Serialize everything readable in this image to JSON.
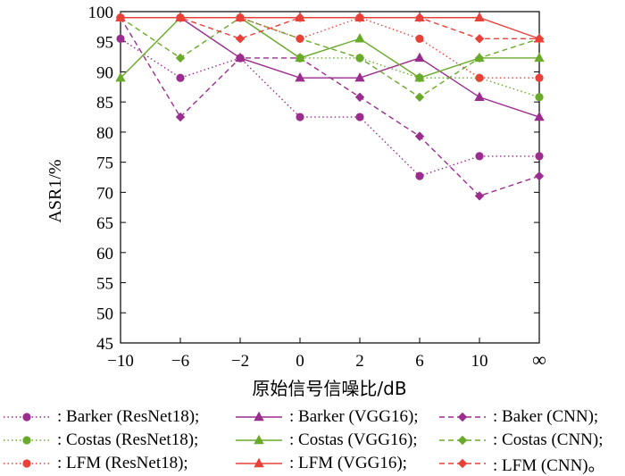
{
  "chart_data": {
    "type": "line",
    "xlabel": "原始信号信噪比/dB",
    "ylabel": "ASR1/%",
    "categories": [
      "−10",
      "−6",
      "−2",
      "0",
      "2",
      "6",
      "10",
      "∞"
    ],
    "ylim": [
      45,
      100
    ],
    "yticks": [
      45,
      50,
      55,
      60,
      65,
      70,
      75,
      80,
      85,
      90,
      95,
      100
    ],
    "grid": false,
    "legend_position": "bottom",
    "series": [
      {
        "name": ": Barker (ResNet18);",
        "color": "#9b2d8e",
        "marker": "circle",
        "dash": "dotted",
        "values": [
          95.5,
          89,
          92.3,
          82.5,
          82.5,
          72.7,
          76,
          76
        ]
      },
      {
        "name": ": Barker (VGG16);",
        "color": "#9b2d8e",
        "marker": "triangle",
        "dash": "solid",
        "values": [
          99,
          99,
          92.3,
          89,
          89,
          92.3,
          85.8,
          82.5
        ]
      },
      {
        "name": ": Baker (CNN);",
        "color": "#9b2d8e",
        "marker": "diamond",
        "dash": "dashed",
        "values": [
          99,
          82.5,
          92.3,
          92.3,
          85.8,
          79.3,
          69.4,
          72.7
        ]
      },
      {
        "name": ": Costas (ResNet18);",
        "color": "#6aaa2a",
        "marker": "circle",
        "dash": "dotted",
        "values": [
          99,
          99,
          99,
          92.3,
          92.3,
          89,
          89,
          85.8
        ]
      },
      {
        "name": ": Costas (VGG16);",
        "color": "#6aaa2a",
        "marker": "triangle",
        "dash": "solid",
        "values": [
          89,
          99,
          99,
          92.3,
          95.5,
          89,
          92.3,
          92.3
        ]
      },
      {
        "name": ": Costas (CNN);",
        "color": "#6aaa2a",
        "marker": "diamond",
        "dash": "dashed",
        "values": [
          99,
          92.3,
          99,
          95.5,
          92.3,
          85.8,
          92.3,
          95.5
        ]
      },
      {
        "name": ": LFM (ResNet18);",
        "color": "#e8413a",
        "marker": "circle",
        "dash": "dotted",
        "values": [
          99,
          99,
          99,
          95.5,
          99,
          95.5,
          89,
          89
        ]
      },
      {
        "name": ": LFM (VGG16);",
        "color": "#e8413a",
        "marker": "triangle",
        "dash": "solid",
        "values": [
          99,
          99,
          99,
          99,
          99,
          99,
          99,
          95.5
        ]
      },
      {
        "name": ": LFM (CNN)。",
        "color": "#e8413a",
        "marker": "diamond",
        "dash": "dashed",
        "values": [
          99,
          99,
          95.5,
          99,
          99,
          99,
          95.5,
          95.5
        ]
      }
    ]
  }
}
